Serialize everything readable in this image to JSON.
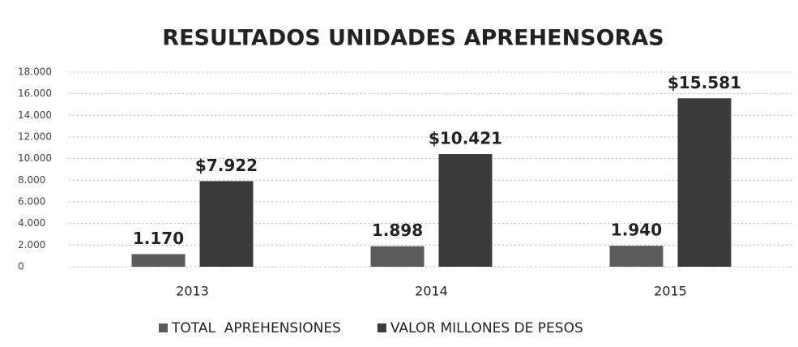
{
  "chart_data": {
    "type": "bar",
    "title": "RESULTADOS UNIDADES APREHENSORAS",
    "categories": [
      "2013",
      "2014",
      "2015"
    ],
    "series": [
      {
        "name": "TOTAL  APREHENSIONES",
        "color": "#5a5a5a",
        "values": [
          1170,
          1898,
          1940
        ],
        "value_labels": [
          "1.170",
          "1.898",
          "1.940"
        ]
      },
      {
        "name": "VALOR MILLONES DE PESOS",
        "color": "#3a3a3a",
        "values": [
          7922,
          10421,
          15581
        ],
        "value_labels": [
          "$7.922",
          "$10.421",
          "$15.581"
        ]
      }
    ],
    "ylim": [
      0,
      18000
    ],
    "yticks": [
      0,
      {
        "value": 2000,
        "label": "2.000"
      },
      {
        "value": 4000,
        "label": "4.000"
      },
      {
        "value": 6000,
        "label": "6.000"
      },
      {
        "value": 8000,
        "label": "8.000"
      },
      {
        "value": 10000,
        "label": "10.000"
      },
      {
        "value": 12000,
        "label": "12.000"
      },
      {
        "value": 14000,
        "label": "14.000"
      },
      {
        "value": 16000,
        "label": "16.000"
      },
      {
        "value": 18000,
        "label": "18.000"
      }
    ],
    "grid": true,
    "legend": "bottom"
  }
}
